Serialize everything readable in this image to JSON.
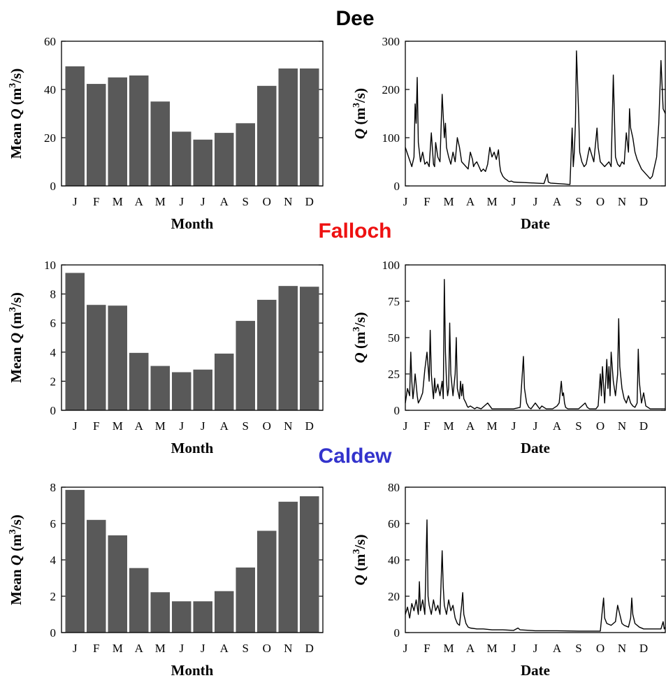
{
  "titles": [
    {
      "text": "Dee",
      "color": "#000000"
    },
    {
      "text": "Falloch",
      "color": "#ee1111"
    },
    {
      "text": "Caldew",
      "color": "#3333cc"
    }
  ],
  "month_letters": [
    "J",
    "F",
    "M",
    "A",
    "M",
    "J",
    "J",
    "A",
    "S",
    "O",
    "N",
    "D"
  ],
  "chart_data": [
    {
      "type": "bar",
      "river": "Dee",
      "categories": [
        "J",
        "F",
        "M",
        "A",
        "M",
        "J",
        "J",
        "A",
        "S",
        "O",
        "N",
        "D"
      ],
      "values": [
        49.6,
        42.3,
        45.0,
        45.8,
        35.0,
        22.5,
        19.2,
        22.0,
        26.0,
        41.5,
        48.7,
        48.7
      ],
      "xlabel": "Month",
      "ylabel": "Mean Q (m3/s)",
      "ylim": [
        0,
        60
      ],
      "yticks": [
        0,
        20,
        40,
        60
      ]
    },
    {
      "type": "line",
      "river": "Dee",
      "x_ticks": [
        "J",
        "F",
        "M",
        "A",
        "M",
        "J",
        "J",
        "A",
        "S",
        "O",
        "N",
        "D"
      ],
      "xlim": [
        0,
        12
      ],
      "ylim": [
        0,
        300
      ],
      "yticks": [
        0,
        100,
        200,
        300
      ],
      "xlabel": "Date",
      "ylabel": "Q (m3/s)",
      "x": [
        0,
        0.15,
        0.3,
        0.4,
        0.45,
        0.5,
        0.55,
        0.6,
        0.7,
        0.8,
        0.9,
        1.0,
        1.1,
        1.2,
        1.3,
        1.35,
        1.4,
        1.5,
        1.6,
        1.7,
        1.8,
        1.85,
        1.9,
        2.0,
        2.1,
        2.2,
        2.3,
        2.4,
        2.5,
        2.6,
        2.7,
        2.8,
        2.9,
        3.0,
        3.1,
        3.15,
        3.2,
        3.3,
        3.4,
        3.5,
        3.6,
        3.7,
        3.8,
        3.9,
        4.0,
        4.1,
        4.2,
        4.3,
        4.35,
        4.4,
        4.5,
        4.6,
        4.7,
        4.75,
        4.8,
        4.9,
        5.0,
        5.5,
        6.0,
        6.4,
        6.55,
        6.6,
        6.7,
        7.0,
        7.3,
        7.6,
        7.7,
        7.75,
        7.8,
        7.85,
        7.9,
        8.0,
        8.05,
        8.15,
        8.25,
        8.35,
        8.5,
        8.7,
        8.85,
        8.9,
        9.0,
        9.2,
        9.4,
        9.5,
        9.6,
        9.7,
        9.8,
        9.9,
        10.0,
        10.1,
        10.2,
        10.3,
        10.35,
        10.4,
        10.5,
        10.6,
        10.7,
        10.8,
        10.9,
        11.0,
        11.1,
        11.2,
        11.3,
        11.4,
        11.5,
        11.6,
        11.7,
        11.8,
        11.9,
        12.0
      ],
      "y": [
        80,
        60,
        40,
        60,
        170,
        130,
        225,
        90,
        50,
        70,
        45,
        50,
        40,
        110,
        45,
        40,
        90,
        60,
        50,
        190,
        100,
        130,
        80,
        60,
        45,
        70,
        50,
        100,
        80,
        50,
        45,
        40,
        35,
        70,
        55,
        40,
        45,
        50,
        40,
        30,
        35,
        30,
        45,
        80,
        60,
        70,
        55,
        75,
        45,
        30,
        20,
        15,
        12,
        10,
        9,
        10,
        8,
        7,
        6,
        5,
        25,
        8,
        6,
        5,
        4,
        3,
        120,
        40,
        70,
        130,
        280,
        150,
        70,
        50,
        40,
        45,
        80,
        50,
        120,
        80,
        50,
        40,
        50,
        40,
        230,
        60,
        45,
        40,
        50,
        45,
        110,
        70,
        160,
        120,
        100,
        70,
        55,
        45,
        35,
        30,
        25,
        20,
        15,
        20,
        40,
        60,
        130,
        260,
        160,
        150
      ]
    },
    {
      "type": "bar",
      "river": "Falloch",
      "categories": [
        "J",
        "F",
        "M",
        "A",
        "M",
        "J",
        "J",
        "A",
        "S",
        "O",
        "N",
        "D"
      ],
      "values": [
        9.45,
        7.25,
        7.2,
        3.95,
        3.05,
        2.62,
        2.8,
        3.9,
        6.15,
        7.6,
        8.55,
        8.5
      ],
      "xlabel": "Month",
      "ylabel": "Mean Q (m3/s)",
      "ylim": [
        0,
        10
      ],
      "yticks": [
        0,
        2,
        4,
        6,
        8,
        10
      ]
    },
    {
      "type": "line",
      "river": "Falloch",
      "x_ticks": [
        "J",
        "F",
        "M",
        "A",
        "M",
        "J",
        "J",
        "A",
        "S",
        "O",
        "N",
        "D"
      ],
      "xlim": [
        0,
        12
      ],
      "ylim": [
        0,
        100
      ],
      "yticks": [
        0,
        25,
        50,
        75,
        100
      ],
      "xlabel": "Date",
      "ylabel": "Q (m3/s)",
      "x": [
        0,
        0.1,
        0.2,
        0.25,
        0.3,
        0.35,
        0.4,
        0.45,
        0.5,
        0.55,
        0.6,
        0.7,
        0.8,
        0.9,
        1.0,
        1.1,
        1.15,
        1.2,
        1.25,
        1.3,
        1.35,
        1.4,
        1.5,
        1.6,
        1.7,
        1.75,
        1.8,
        1.85,
        1.9,
        1.95,
        2.0,
        2.05,
        2.1,
        2.2,
        2.3,
        2.35,
        2.4,
        2.5,
        2.55,
        2.6,
        2.65,
        2.7,
        2.8,
        2.85,
        2.9,
        3.0,
        3.1,
        3.2,
        3.3,
        3.5,
        3.8,
        4.0,
        4.3,
        4.5,
        4.8,
        5.0,
        5.3,
        5.45,
        5.5,
        5.6,
        5.7,
        5.8,
        6.0,
        6.2,
        6.3,
        6.5,
        6.8,
        7.0,
        7.1,
        7.2,
        7.25,
        7.3,
        7.35,
        7.4,
        7.5,
        7.7,
        8.0,
        8.3,
        8.4,
        8.5,
        8.8,
        8.9,
        9.0,
        9.05,
        9.1,
        9.2,
        9.3,
        9.35,
        9.4,
        9.45,
        9.5,
        9.6,
        9.7,
        9.8,
        9.85,
        9.9,
        10.0,
        10.1,
        10.2,
        10.3,
        10.4,
        10.5,
        10.6,
        10.7,
        10.75,
        10.8,
        10.9,
        11.0,
        11.1,
        11.2,
        11.3,
        11.4,
        11.5,
        11.6,
        11.7,
        11.8,
        11.9,
        12.0
      ],
      "y": [
        5,
        15,
        10,
        40,
        20,
        8,
        15,
        25,
        18,
        10,
        5,
        8,
        12,
        28,
        40,
        20,
        55,
        25,
        15,
        8,
        22,
        12,
        18,
        10,
        20,
        8,
        90,
        40,
        20,
        10,
        15,
        60,
        25,
        10,
        25,
        50,
        15,
        8,
        20,
        10,
        18,
        8,
        5,
        3,
        2,
        3,
        2,
        1,
        2,
        1,
        5,
        1,
        1,
        1,
        1,
        1,
        2,
        37,
        15,
        5,
        2,
        1,
        5,
        1,
        3,
        1,
        1,
        3,
        5,
        20,
        10,
        12,
        5,
        2,
        1,
        1,
        1,
        5,
        2,
        1,
        1,
        3,
        25,
        10,
        30,
        5,
        35,
        15,
        30,
        10,
        40,
        20,
        10,
        25,
        63,
        30,
        15,
        8,
        5,
        10,
        5,
        3,
        2,
        5,
        42,
        20,
        5,
        12,
        3,
        2,
        1,
        1,
        1,
        1,
        1,
        1,
        1,
        1
      ]
    },
    {
      "type": "bar",
      "river": "Caldew",
      "categories": [
        "J",
        "F",
        "M",
        "A",
        "M",
        "J",
        "J",
        "A",
        "S",
        "O",
        "N",
        "D"
      ],
      "values": [
        7.85,
        6.2,
        5.35,
        3.55,
        2.22,
        1.72,
        1.72,
        2.28,
        3.58,
        5.6,
        7.2,
        7.5
      ],
      "xlabel": "Month",
      "ylabel": "Mean Q (m3/s)",
      "ylim": [
        0,
        8
      ],
      "yticks": [
        0,
        2,
        4,
        6,
        8
      ]
    },
    {
      "type": "line",
      "river": "Caldew",
      "x_ticks": [
        "J",
        "F",
        "M",
        "A",
        "M",
        "J",
        "J",
        "A",
        "S",
        "O",
        "N",
        "D"
      ],
      "xlim": [
        0,
        12
      ],
      "ylim": [
        0,
        80
      ],
      "yticks": [
        0,
        20,
        40,
        60,
        80
      ],
      "xlabel": "Date",
      "ylabel": "Q (m3/s)",
      "x": [
        0,
        0.1,
        0.2,
        0.3,
        0.4,
        0.5,
        0.6,
        0.65,
        0.7,
        0.8,
        0.9,
        1.0,
        1.05,
        1.1,
        1.2,
        1.3,
        1.4,
        1.5,
        1.6,
        1.7,
        1.75,
        1.8,
        1.9,
        2.0,
        2.1,
        2.2,
        2.3,
        2.4,
        2.5,
        2.6,
        2.65,
        2.7,
        2.8,
        2.9,
        3.0,
        3.3,
        3.6,
        4.0,
        4.5,
        5.0,
        5.2,
        5.3,
        6.0,
        7.0,
        8.0,
        9.0,
        9.1,
        9.15,
        9.2,
        9.3,
        9.5,
        9.7,
        9.8,
        9.9,
        10.0,
        10.1,
        10.3,
        10.4,
        10.45,
        10.5,
        10.6,
        10.8,
        11.0,
        11.2,
        11.5,
        11.8,
        11.9,
        11.95,
        12.0
      ],
      "y": [
        10,
        14,
        8,
        16,
        12,
        18,
        10,
        28,
        12,
        18,
        10,
        62,
        20,
        15,
        10,
        18,
        12,
        15,
        10,
        45,
        25,
        15,
        10,
        18,
        12,
        15,
        8,
        5,
        4,
        15,
        22,
        10,
        5,
        3,
        2.5,
        2,
        2,
        1.5,
        1.5,
        1.2,
        2.5,
        1.5,
        1,
        1,
        0.8,
        0.8,
        13,
        19,
        8,
        5,
        4,
        6,
        15,
        10,
        5,
        4,
        3,
        8,
        19,
        10,
        5,
        3,
        2,
        2,
        2,
        2,
        6,
        2,
        3
      ]
    }
  ]
}
